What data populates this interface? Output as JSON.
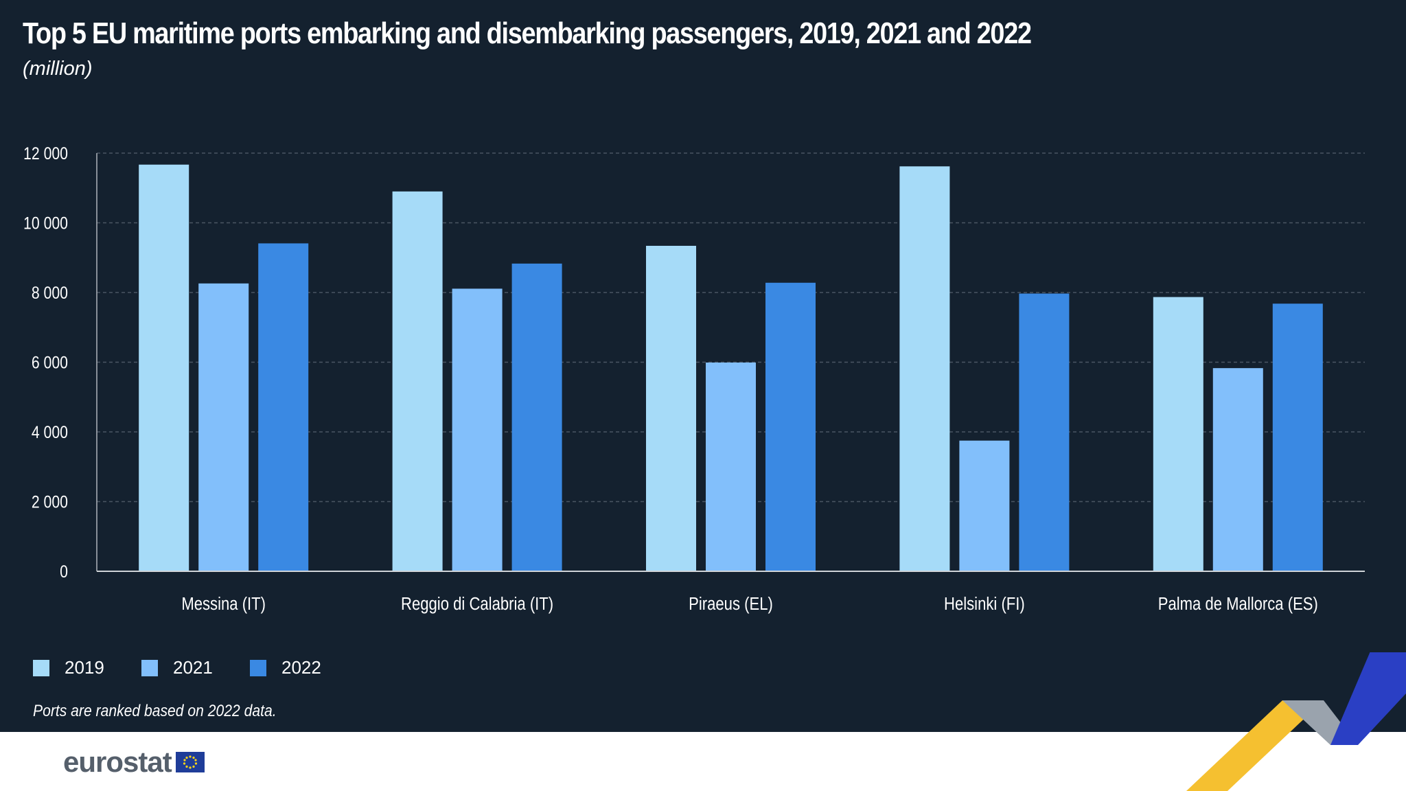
{
  "title": "Top 5 EU maritime ports embarking and disembarking passengers, 2019, 2021 and 2022",
  "subtitle": "(million)",
  "note": "Ports are ranked based on 2022 data.",
  "logo": "eurostat",
  "colors": {
    "background": "#14212f",
    "2019": "#a6dbf8",
    "2021": "#82bffb",
    "2022": "#3a89e3"
  },
  "chart_data": {
    "type": "bar",
    "title": "Top 5 EU maritime ports embarking and disembarking passengers, 2019, 2021 and 2022",
    "ylabel": "(million)",
    "ylim": [
      0,
      12000
    ],
    "yticks": [
      0,
      2000,
      4000,
      6000,
      8000,
      10000,
      12000
    ],
    "ytick_labels": [
      "0",
      "2 000",
      "4 000",
      "6 000",
      "8 000",
      "10 000",
      "12 000"
    ],
    "grid": true,
    "legend": "bottom-left",
    "categories": [
      "Messina (IT)",
      "Reggio di Calabria (IT)",
      "Piraeus (EL)",
      "Helsinki (FI)",
      "Palma de Mallorca (ES)"
    ],
    "series": [
      {
        "name": "2019",
        "values": [
          11670,
          10900,
          9340,
          11620,
          7870
        ]
      },
      {
        "name": "2021",
        "values": [
          8260,
          8110,
          5990,
          3750,
          5830
        ]
      },
      {
        "name": "2022",
        "values": [
          9410,
          8830,
          8280,
          7970,
          7680
        ]
      }
    ]
  }
}
